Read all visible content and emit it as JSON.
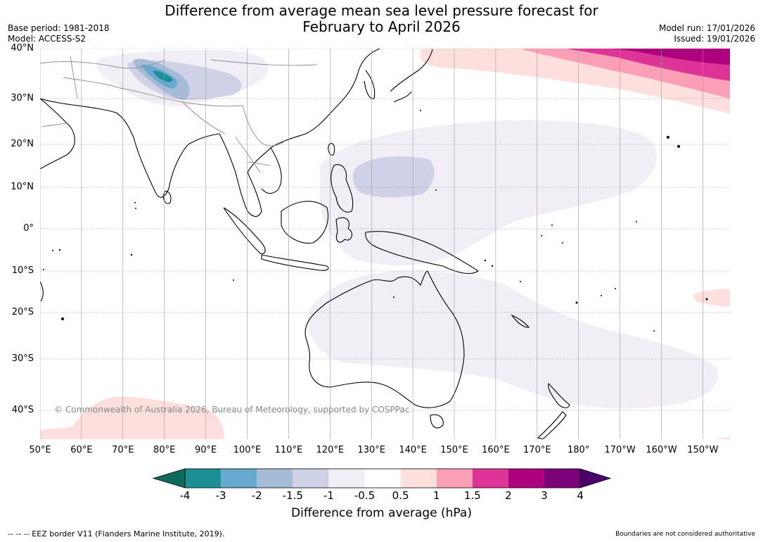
{
  "header": {
    "title_line1": "Difference from average mean sea level pressure forecast for",
    "title_line2": "February to April 2026",
    "base_period": "Base period: 1981-2018",
    "model": "Model: ACCESS-S2",
    "model_run": "Model run: 17/01/2026",
    "issued": "Issued: 19/01/2026"
  },
  "map": {
    "lat_labels": [
      "40°N",
      "30°N",
      "20°N",
      "10°N",
      "0°",
      "10°S",
      "20°S",
      "30°S",
      "40°S"
    ],
    "lon_labels": [
      "50°E",
      "60°E",
      "70°E",
      "80°E",
      "90°E",
      "100°E",
      "110°E",
      "120°E",
      "130°E",
      "140°E",
      "150°E",
      "160°E",
      "170°E",
      "180°",
      "170°W",
      "160°W",
      "150°W"
    ],
    "copyright": "© Commonwealth of Australia 2026, Bureau of Meteorology, supported by COSPPac"
  },
  "colorbar": {
    "ticks": [
      "-4",
      "-3",
      "-2",
      "-1.5",
      "-1",
      "-0.5",
      "0.5",
      "1",
      "1.5",
      "2",
      "3",
      "4"
    ],
    "colors": [
      "#0d6b5c",
      "#1c8f95",
      "#67a9cf",
      "#a6bcd6",
      "#cfd1e6",
      "#f2eef6",
      "#ffffff",
      "#fde0dd",
      "#fa9fb5",
      "#de3497",
      "#ae017e",
      "#7a0177",
      "#49006a"
    ],
    "label": "Difference from average (hPa)"
  },
  "footer": {
    "eez_note": "--  --  -- EEZ border V11 (Flanders Marine Institute, 2019).",
    "boundaries_note": "Boundaries are not considered authoritative"
  }
}
